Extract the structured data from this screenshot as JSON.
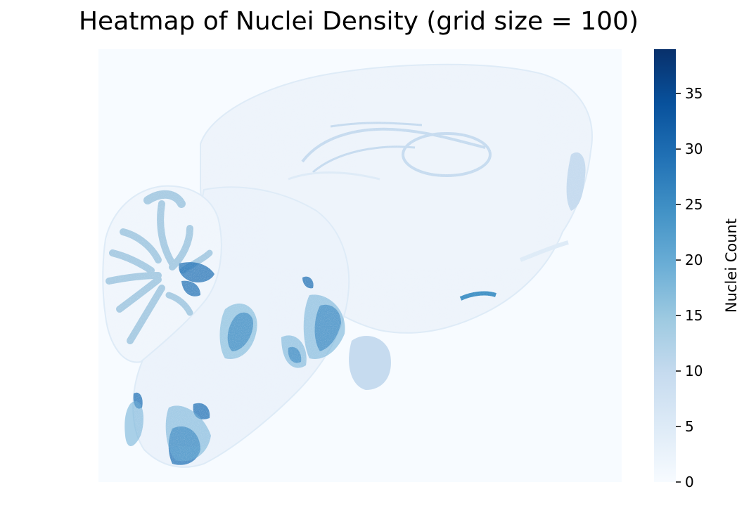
{
  "chart_data": {
    "type": "heatmap",
    "title": "Heatmap of Nuclei Density (grid size = 100)",
    "xlabel": "",
    "ylabel": "",
    "colormap": "Blues",
    "colorbar": {
      "label": "Nuclei Count",
      "min": 0,
      "max": 39,
      "ticks": [
        0,
        5,
        10,
        15,
        20,
        25,
        30,
        35
      ],
      "tick_labels": [
        "0",
        "5",
        "10",
        "15",
        "20",
        "25",
        "30",
        "35"
      ]
    },
    "axes_visible": false,
    "grid": false,
    "colors": {
      "background": "#f7fbff",
      "low": "#f7fbff",
      "high": "#08306b"
    }
  }
}
